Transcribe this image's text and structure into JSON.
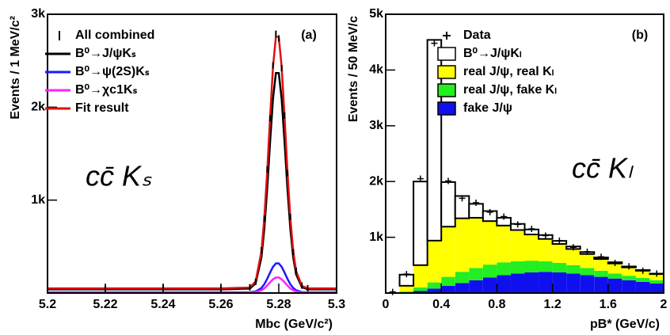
{
  "chart_data": [
    {
      "type": "line",
      "panel_label": "(a)",
      "x_label": "Mbc (GeV/c²)",
      "y_label": "Events / 1 MeV/c²",
      "annotation": "cc̄ Kₛ",
      "xlim": [
        5.2,
        5.3
      ],
      "xticks": [
        5.2,
        5.22,
        5.24,
        5.26,
        5.28,
        5.3
      ],
      "ylim": [
        0,
        3000
      ],
      "yticks": [
        {
          "value": 1000,
          "label": "1k"
        },
        {
          "value": 2000,
          "label": "2k"
        },
        {
          "value": 3000,
          "label": "3k"
        }
      ],
      "x": [
        5.2,
        5.22,
        5.24,
        5.26,
        5.27,
        5.272,
        5.274,
        5.275,
        5.276,
        5.277,
        5.278,
        5.279,
        5.28,
        5.281,
        5.282,
        5.283,
        5.284,
        5.285,
        5.286,
        5.288,
        5.29,
        5.3
      ],
      "data": {
        "name": "All combined",
        "color": "#000000",
        "values": [
          48,
          52,
          55,
          49,
          62,
          120,
          460,
          800,
          1330,
          1880,
          2450,
          2790,
          2740,
          2420,
          1910,
          1290,
          820,
          440,
          240,
          80,
          52,
          47
        ]
      },
      "series": [
        {
          "name": "B⁰→J/ψKₛ",
          "color": "#000000",
          "values": [
            40,
            40,
            40,
            40,
            48,
            105,
            383,
            691,
            1124,
            1627,
            2089,
            2367,
            2367,
            2089,
            1627,
            1124,
            691,
            383,
            201,
            63,
            40,
            40
          ]
        },
        {
          "name": "B⁰→ψ(2S)Kₛ",
          "color": "#1a1aff",
          "values": [
            8,
            8,
            8,
            8,
            9,
            17,
            54,
            95,
            153,
            220,
            282,
            319,
            319,
            282,
            220,
            153,
            95,
            54,
            30,
            11,
            8,
            8
          ]
        },
        {
          "name": "B⁰→χc1Kₛ",
          "color": "#ff22ff",
          "values": [
            5,
            5,
            5,
            5,
            6,
            10,
            29,
            50,
            81,
            116,
            148,
            167,
            167,
            148,
            116,
            81,
            50,
            29,
            16,
            7,
            5,
            5
          ]
        },
        {
          "name": "Fit result",
          "color": "#e01010",
          "values": [
            50,
            50,
            50,
            50,
            59,
            126,
            449,
            807,
            1310,
            1895,
            2432,
            2756,
            2756,
            2432,
            1895,
            1310,
            807,
            449,
            237,
            77,
            50,
            50
          ]
        }
      ]
    },
    {
      "type": "histogram",
      "stacked": true,
      "panel_label": "(b)",
      "x_label": "pB* (GeV/c)",
      "y_label": "Events / 50 MeV/c",
      "annotation": "cc̄ Kₗ",
      "xlim": [
        0,
        2
      ],
      "xticks": [
        0,
        0.4,
        0.8,
        1.2,
        1.6,
        2
      ],
      "ylim": [
        0,
        5000
      ],
      "yticks": [
        {
          "value": 1000,
          "label": "1k"
        },
        {
          "value": 2000,
          "label": "2k"
        },
        {
          "value": 3000,
          "label": "3k"
        },
        {
          "value": 4000,
          "label": "4k"
        },
        {
          "value": 5000,
          "label": "5k"
        }
      ],
      "bins": [
        0,
        0.1,
        0.2,
        0.3,
        0.4,
        0.5,
        0.6,
        0.7,
        0.8,
        0.9,
        1.0,
        1.1,
        1.2,
        1.3,
        1.4,
        1.5,
        1.6,
        1.7,
        1.8,
        1.9,
        2.0
      ],
      "data": {
        "name": "Data",
        "color": "#000000",
        "x": [
          0.05,
          0.15,
          0.25,
          0.35,
          0.45,
          0.55,
          0.65,
          0.75,
          0.85,
          0.95,
          1.05,
          1.15,
          1.25,
          1.35,
          1.45,
          1.55,
          1.65,
          1.75,
          1.85,
          1.95
        ],
        "values": [
          20,
          340,
          2050,
          4480,
          2010,
          1700,
          1620,
          1450,
          1370,
          1230,
          1150,
          1030,
          940,
          820,
          740,
          650,
          540,
          480,
          400,
          350
        ]
      },
      "series": [
        {
          "name": "fake J/ψ",
          "color": "#1010ee",
          "values": [
            0,
            10,
            40,
            80,
            130,
            180,
            230,
            280,
            320,
            350,
            370,
            380,
            370,
            350,
            320,
            290,
            260,
            230,
            200,
            170
          ]
        },
        {
          "name": "real J/ψ, fake Kₗ",
          "color": "#22ee22",
          "values": [
            0,
            20,
            60,
            110,
            160,
            200,
            220,
            230,
            230,
            220,
            210,
            190,
            170,
            150,
            130,
            110,
            90,
            80,
            70,
            60
          ]
        },
        {
          "name": "real J/ψ, real Kₗ",
          "color": "#ffff00",
          "values": [
            0,
            100,
            400,
            750,
            900,
            960,
            900,
            780,
            660,
            560,
            470,
            400,
            340,
            290,
            250,
            210,
            180,
            150,
            130,
            110
          ]
        },
        {
          "name": "B⁰→J/ψKₗ",
          "color": "#ffffff",
          "values": [
            0,
            200,
            1500,
            3600,
            800,
            400,
            250,
            180,
            140,
            110,
            90,
            70,
            55,
            45,
            35,
            28,
            22,
            16,
            12,
            8
          ]
        }
      ]
    }
  ]
}
